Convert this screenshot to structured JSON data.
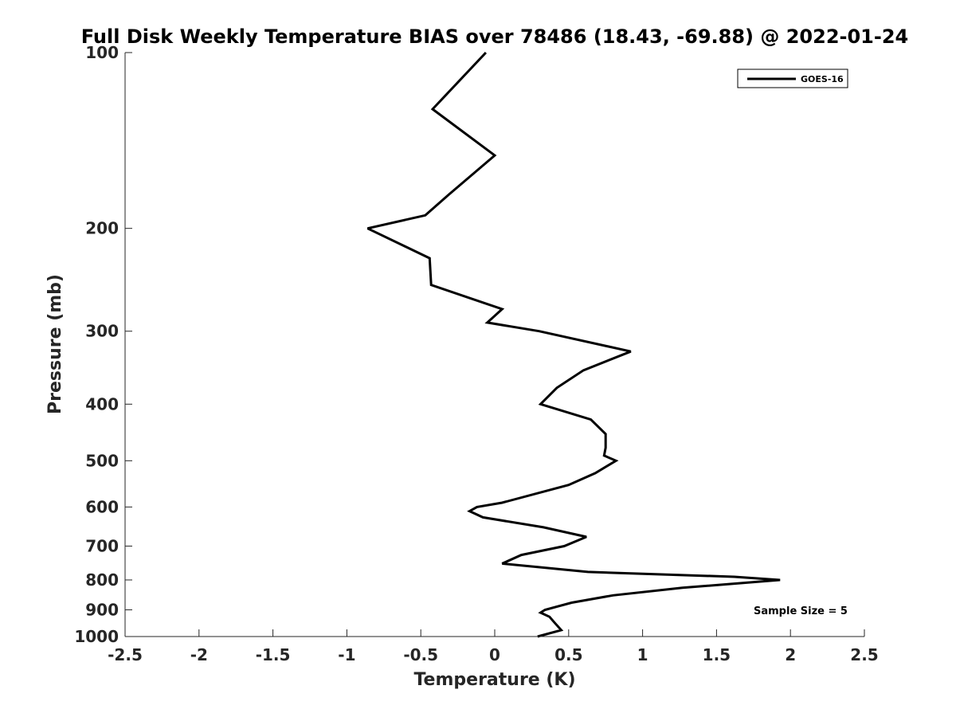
{
  "chart_data": {
    "type": "line",
    "title": "Full Disk Weekly Temperature BIAS over 78486 (18.43, -69.88) @ 2022-01-24",
    "xlabel": "Temperature (K)",
    "ylabel": "Pressure (mb)",
    "xlim": [
      -2.5,
      2.5
    ],
    "ylim": [
      100,
      1000
    ],
    "y_scale": "log",
    "y_reversed": true,
    "grid": false,
    "legend_position": "top-right",
    "x_ticks": [
      -2.5,
      -2,
      -1.5,
      -1,
      -0.5,
      0,
      0.5,
      1,
      1.5,
      2,
      2.5
    ],
    "x_tick_labels": [
      "-2.5",
      "-2",
      "-1.5",
      "-1",
      "-0.5",
      "0",
      "0.5",
      "1",
      "1.5",
      "2",
      "2.5"
    ],
    "y_ticks": [
      100,
      200,
      300,
      400,
      500,
      600,
      700,
      800,
      900,
      1000
    ],
    "y_tick_labels": [
      "100",
      "200",
      "300",
      "400",
      "500",
      "600",
      "700",
      "800",
      "900",
      "1000"
    ],
    "series": [
      {
        "name": "GOES-16",
        "color": "#000000",
        "points": [
          [
            -0.06,
            100
          ],
          [
            -0.42,
            125
          ],
          [
            0.0,
            150
          ],
          [
            -0.31,
            175
          ],
          [
            -0.47,
            190
          ],
          [
            -0.86,
            200
          ],
          [
            -0.44,
            225
          ],
          [
            -0.43,
            250
          ],
          [
            0.05,
            275
          ],
          [
            -0.05,
            290
          ],
          [
            0.3,
            300
          ],
          [
            0.92,
            325
          ],
          [
            0.6,
            350
          ],
          [
            0.42,
            375
          ],
          [
            0.31,
            400
          ],
          [
            0.65,
            425
          ],
          [
            0.75,
            450
          ],
          [
            0.75,
            475
          ],
          [
            0.74,
            490
          ],
          [
            0.82,
            500
          ],
          [
            0.68,
            525
          ],
          [
            0.5,
            550
          ],
          [
            0.05,
            590
          ],
          [
            -0.12,
            600
          ],
          [
            -0.17,
            610
          ],
          [
            -0.08,
            625
          ],
          [
            0.33,
            650
          ],
          [
            0.62,
            675
          ],
          [
            0.47,
            700
          ],
          [
            0.18,
            725
          ],
          [
            0.05,
            750
          ],
          [
            0.63,
            775
          ],
          [
            1.62,
            790
          ],
          [
            1.93,
            800
          ],
          [
            1.27,
            825
          ],
          [
            0.8,
            850
          ],
          [
            0.52,
            875
          ],
          [
            0.34,
            900
          ],
          [
            0.31,
            910
          ],
          [
            0.37,
            925
          ],
          [
            0.41,
            950
          ],
          [
            0.45,
            975
          ],
          [
            0.29,
            1000
          ]
        ]
      }
    ],
    "annotation": "Sample Size = 5"
  }
}
